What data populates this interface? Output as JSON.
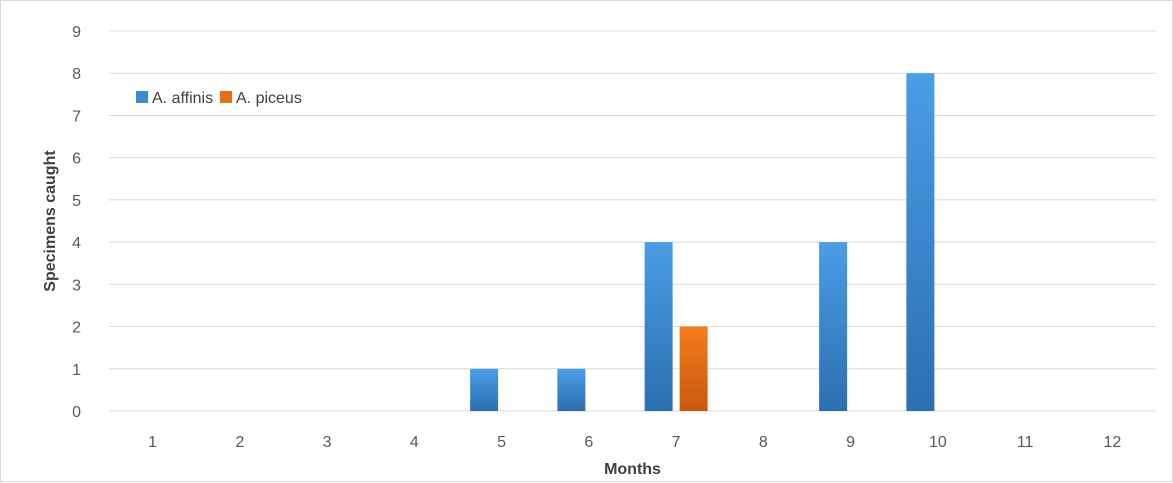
{
  "chart_data": {
    "type": "bar",
    "title": "",
    "xlabel": "Months",
    "ylabel": "Specimens caught",
    "categories": [
      "1",
      "2",
      "3",
      "4",
      "5",
      "6",
      "7",
      "8",
      "9",
      "10",
      "11",
      "12"
    ],
    "ylim": [
      0,
      9
    ],
    "yticks": [
      "0",
      "1",
      "2",
      "3",
      "4",
      "5",
      "6",
      "7",
      "8",
      "9"
    ],
    "grid": true,
    "legend_position": "top-left",
    "series": [
      {
        "name": "A. affinis",
        "color": "#3b8ad6",
        "values": [
          0,
          0,
          0,
          0,
          1,
          1,
          4,
          0,
          4,
          8,
          0,
          0
        ]
      },
      {
        "name": "A. piceus",
        "color": "#e56e17",
        "values": [
          0,
          0,
          0,
          0,
          0,
          0,
          2,
          0,
          0,
          0,
          0,
          0
        ]
      }
    ]
  }
}
